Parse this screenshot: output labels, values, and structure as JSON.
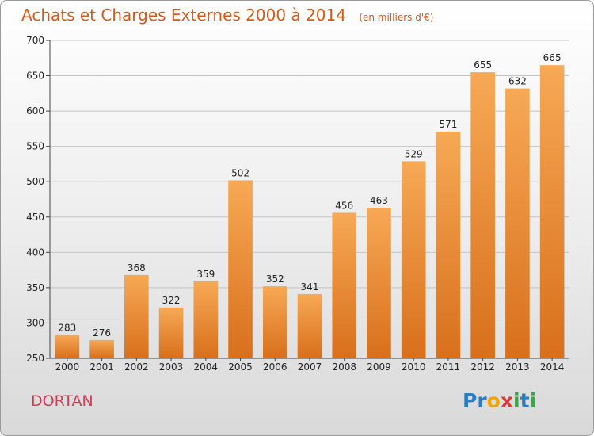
{
  "header": {
    "title": "Achats et Charges Externes 2000 à 2014",
    "unit": "(en milliers d'€)"
  },
  "footer": {
    "place": "DORTAN",
    "brand_letters": [
      {
        "ch": "P",
        "color": "#2a7fc4"
      },
      {
        "ch": "r",
        "color": "#2a7fc4"
      },
      {
        "ch": "o",
        "color": "#f0a500"
      },
      {
        "ch": "x",
        "color": "#d83a3a"
      },
      {
        "ch": "i",
        "color": "#3aa64a"
      },
      {
        "ch": "t",
        "color": "#2a7fc4"
      },
      {
        "ch": "i",
        "color": "#3aa64a"
      }
    ]
  },
  "colors": {
    "bar_top": "#f7a955",
    "bar_bottom": "#d86f1c",
    "title": "#d85a17",
    "place": "#d33a55"
  },
  "chart_data": {
    "type": "bar",
    "categories": [
      "2000",
      "2001",
      "2002",
      "2003",
      "2004",
      "2005",
      "2006",
      "2007",
      "2008",
      "2009",
      "2010",
      "2011",
      "2012",
      "2013",
      "2014"
    ],
    "values": [
      283,
      276,
      368,
      322,
      359,
      502,
      352,
      341,
      456,
      463,
      529,
      571,
      655,
      632,
      665
    ],
    "ylim": [
      250,
      700
    ],
    "yticks": [
      250,
      300,
      350,
      400,
      450,
      500,
      550,
      600,
      650,
      700
    ],
    "grid": true,
    "title": "Achats et Charges Externes 2000 à 2014",
    "xlabel": "",
    "ylabel": ""
  }
}
